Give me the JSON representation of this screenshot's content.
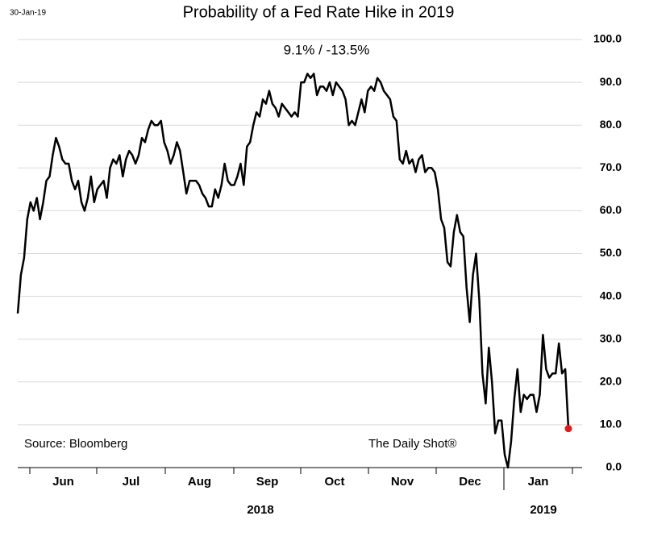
{
  "chart_data": {
    "type": "line",
    "date": "30-Jan-19",
    "title": "Probability of a Fed Rate Hike in 2019",
    "subtitle": "9.1%  /  -13.5%",
    "source": "Source: Bloomberg",
    "credit": "The Daily Shot®",
    "months": [
      "Jun",
      "Jul",
      "Aug",
      "Sep",
      "Oct",
      "Nov",
      "Dec",
      "Jan"
    ],
    "years": [
      "2018",
      "2019"
    ],
    "color": "#000000",
    "last_point_color": "#e31a1c",
    "grid": true,
    "ylim": [
      0,
      100
    ],
    "yticks": [
      {
        "value": 0,
        "label": "0.0"
      },
      {
        "value": 10,
        "label": "10.0"
      },
      {
        "value": 20,
        "label": "20.0"
      },
      {
        "value": 30,
        "label": "30.0"
      },
      {
        "value": 40,
        "label": "40.0"
      },
      {
        "value": 50,
        "label": "50.0"
      },
      {
        "value": 60,
        "label": "60.0"
      },
      {
        "value": 70,
        "label": "70.0"
      },
      {
        "value": 80,
        "label": "80.0"
      },
      {
        "value": 90,
        "label": "90.0"
      },
      {
        "value": 100,
        "label": "100.0"
      }
    ],
    "values": [
      36,
      45,
      49,
      58,
      62,
      60,
      63,
      58,
      62,
      67,
      68,
      73,
      77,
      75,
      72,
      71,
      71,
      67,
      65,
      67,
      62,
      60,
      63,
      68,
      62,
      65,
      66,
      67,
      63,
      70,
      72,
      71,
      73,
      68,
      72,
      74,
      73,
      71,
      73,
      77,
      76,
      79,
      81,
      80,
      80,
      81,
      76,
      74,
      71,
      73,
      76,
      74,
      69,
      64,
      67,
      67,
      67,
      66,
      64,
      63,
      61,
      61,
      65,
      63,
      66,
      71,
      67,
      66,
      66,
      68,
      71,
      66,
      75,
      76,
      80,
      83,
      82,
      86,
      85,
      88,
      85,
      84,
      82,
      85,
      84,
      83,
      82,
      83,
      82,
      90,
      90,
      92,
      91,
      92,
      87,
      89,
      89,
      88,
      90,
      87,
      90,
      89,
      88,
      86,
      80,
      81,
      80,
      83,
      86,
      83,
      88,
      89,
      88,
      91,
      90,
      88,
      87,
      86,
      82,
      81,
      72,
      71,
      74,
      71,
      72,
      69,
      72,
      73,
      69,
      70,
      70,
      69,
      65,
      58,
      56,
      48,
      47,
      55,
      59,
      55,
      54,
      42,
      34,
      45,
      50,
      39,
      22,
      15,
      28,
      20,
      8,
      11,
      11,
      3,
      0,
      6,
      16,
      23,
      13,
      17,
      16,
      17,
      17,
      13,
      17,
      31,
      23,
      21,
      22,
      22,
      29,
      22,
      23,
      9.1
    ]
  }
}
